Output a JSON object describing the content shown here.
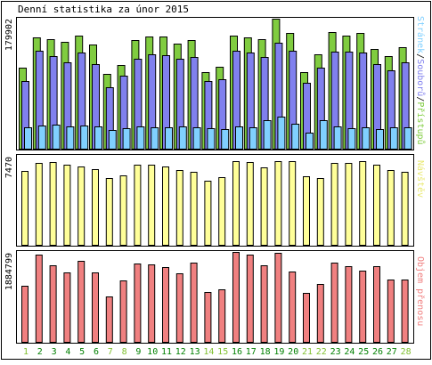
{
  "title": "Denní statistika za únor 2015",
  "colors": {
    "green": "#80cc40",
    "blue": "#8080ee",
    "cyan": "#80d0ff",
    "yellow": "#ffff99",
    "red": "#f08080",
    "weekend": "#80c030",
    "weekday": "#008000",
    "frame": "#000000",
    "grid": "#d0d0d0"
  },
  "days": [
    "1",
    "2",
    "3",
    "4",
    "5",
    "6",
    "7",
    "8",
    "9",
    "10",
    "11",
    "12",
    "13",
    "14",
    "15",
    "16",
    "17",
    "18",
    "19",
    "20",
    "21",
    "22",
    "23",
    "24",
    "25",
    "26",
    "27",
    "28"
  ],
  "weekend_days": [
    1,
    7,
    8,
    14,
    15,
    21,
    22,
    28
  ],
  "chart_data": [
    {
      "type": "bar",
      "panel": "access",
      "ymax_label": "179902",
      "ylim": [
        0,
        179902
      ],
      "ylabel_parts": [
        "Stránek",
        "/",
        "Souborů",
        "/",
        "Přístupů"
      ],
      "categories": [
        "1",
        "2",
        "3",
        "4",
        "5",
        "6",
        "7",
        "8",
        "9",
        "10",
        "11",
        "12",
        "13",
        "14",
        "15",
        "16",
        "17",
        "18",
        "19",
        "20",
        "21",
        "22",
        "23",
        "24",
        "25",
        "26",
        "27",
        "28"
      ],
      "series": [
        {
          "name": "Přístupů",
          "color": "#80cc40",
          "values": [
            112000,
            154000,
            151000,
            148000,
            156000,
            144000,
            103000,
            116000,
            150000,
            155000,
            155000,
            145000,
            150000,
            106000,
            113000,
            156000,
            154000,
            152000,
            179902,
            160000,
            106000,
            130000,
            162000,
            156000,
            160000,
            138000,
            128000,
            141000
          ]
        },
        {
          "name": "Souborů",
          "color": "#8080ee",
          "values": [
            94000,
            135000,
            128000,
            120000,
            133000,
            117000,
            85000,
            101000,
            125000,
            131000,
            129000,
            125000,
            127000,
            94000,
            96000,
            135000,
            133000,
            127000,
            147000,
            135000,
            91000,
            112000,
            134000,
            134000,
            133000,
            117000,
            109000,
            120000
          ]
        },
        {
          "name": "Stránek",
          "color": "#80d0ff",
          "values": [
            30000,
            32000,
            33000,
            31000,
            32000,
            31000,
            26000,
            28000,
            31000,
            30000,
            29000,
            31000,
            29000,
            28000,
            27000,
            31000,
            30000,
            39000,
            44000,
            35000,
            22000,
            40000,
            31000,
            28000,
            29000,
            27000,
            30000,
            29000
          ]
        }
      ]
    },
    {
      "type": "bar",
      "panel": "visits",
      "ymax_label": "7470",
      "ylim": [
        0,
        7470
      ],
      "ylabel_parts": [
        "Návštěv"
      ],
      "categories": [
        "1",
        "2",
        "3",
        "4",
        "5",
        "6",
        "7",
        "8",
        "9",
        "10",
        "11",
        "12",
        "13",
        "14",
        "15",
        "16",
        "17",
        "18",
        "19",
        "20",
        "21",
        "22",
        "23",
        "24",
        "25",
        "26",
        "27",
        "28"
      ],
      "series": [
        {
          "name": "Návštěv",
          "color": "#ffff99",
          "values": [
            6200,
            6900,
            6950,
            6750,
            6600,
            6350,
            5600,
            5800,
            6750,
            6700,
            6600,
            6300,
            6150,
            5400,
            5700,
            7050,
            6950,
            6500,
            7000,
            7000,
            5750,
            5600,
            6900,
            6900,
            7050,
            6700,
            6250,
            6100
          ]
        }
      ]
    },
    {
      "type": "bar",
      "panel": "volume",
      "ymax_label": "1884799",
      "ylim": [
        0,
        1884799
      ],
      "ylabel_parts": [
        "Objem přenosu"
      ],
      "categories": [
        "1",
        "2",
        "3",
        "4",
        "5",
        "6",
        "7",
        "8",
        "9",
        "10",
        "11",
        "12",
        "13",
        "14",
        "15",
        "16",
        "17",
        "18",
        "19",
        "20",
        "21",
        "22",
        "23",
        "24",
        "25",
        "26",
        "27",
        "28"
      ],
      "series": [
        {
          "name": "Objem přenosu",
          "color": "#f08080",
          "values": [
            1180000,
            1830000,
            1610000,
            1450000,
            1700000,
            1460000,
            960000,
            1290000,
            1640000,
            1620000,
            1570000,
            1440000,
            1660000,
            1050000,
            1110000,
            1880000,
            1820000,
            1600000,
            1860000,
            1480000,
            1020000,
            1210000,
            1660000,
            1590000,
            1490000,
            1580000,
            1310000,
            1310000
          ]
        }
      ]
    }
  ]
}
